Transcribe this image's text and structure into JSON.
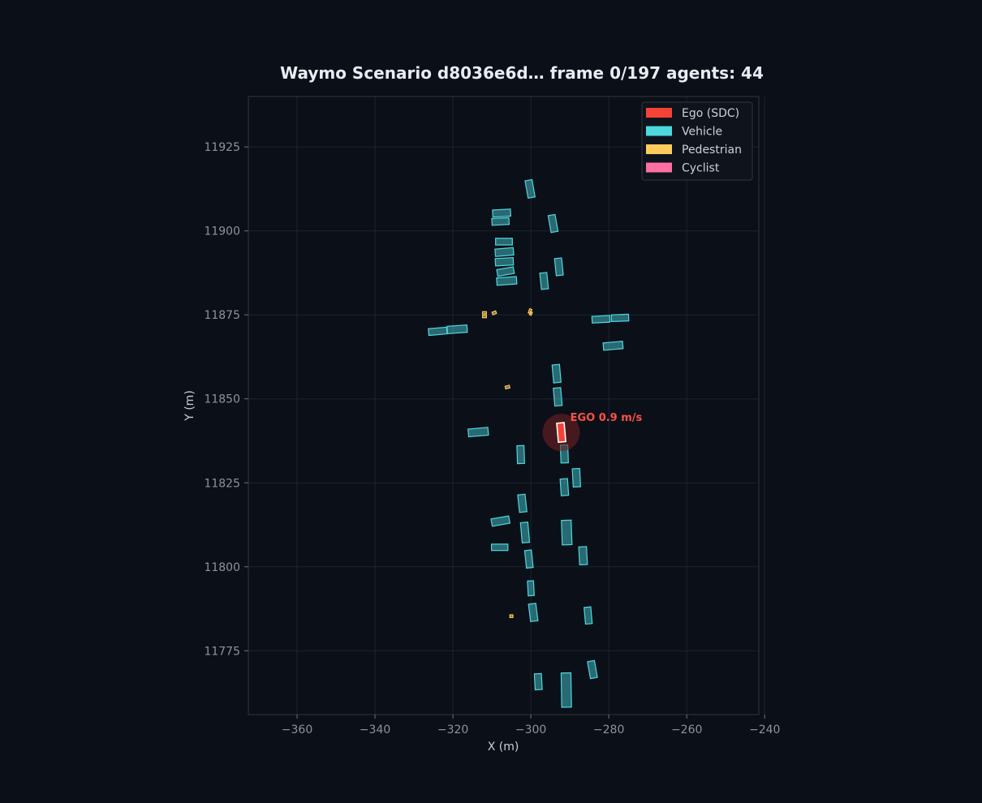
{
  "chart_data": {
    "type": "scatter",
    "title": "Waymo Scenario  d8036e6d…   frame 0/197   agents: 44",
    "xlabel": "X (m)",
    "ylabel": "Y (m)",
    "xlim": [
      -372.5,
      -241.5
    ],
    "ylim": [
      11756,
      11940
    ],
    "xticks": [
      -360,
      -340,
      -320,
      -300,
      -280,
      -260,
      -240
    ],
    "yticks": [
      11775,
      11800,
      11825,
      11850,
      11875,
      11900,
      11925
    ],
    "grid": true,
    "legend": {
      "placement": "top-right",
      "entries": [
        {
          "label": "Ego (SDC)",
          "color": "#f44336"
        },
        {
          "label": "Vehicle",
          "color": "#4dd8e0"
        },
        {
          "label": "Pedestrian",
          "color": "#ffcc5c"
        },
        {
          "label": "Cyclist",
          "color": "#ff6fa3"
        }
      ]
    },
    "ego": {
      "x": -292.2,
      "y": 11840,
      "length": 4.9,
      "width": 2.2,
      "heading_deg": 95,
      "label": "EGO  0.9 m/s"
    },
    "agents": [
      {
        "type": "vehicle",
        "x": -300.2,
        "y": 11912.5,
        "length": 4.5,
        "width": 2.1,
        "heading_deg": 100
      },
      {
        "type": "vehicle",
        "x": -307.5,
        "y": 11905.3,
        "length": 4.6,
        "width": 2.1,
        "heading_deg": 3
      },
      {
        "type": "vehicle",
        "x": -307.8,
        "y": 11902.8,
        "length": 4.4,
        "width": 2.0,
        "heading_deg": 3
      },
      {
        "type": "vehicle",
        "x": -294.3,
        "y": 11902.2,
        "length": 4.4,
        "width": 2.1,
        "heading_deg": 100
      },
      {
        "type": "vehicle",
        "x": -306.9,
        "y": 11896.8,
        "length": 4.3,
        "width": 2.0,
        "heading_deg": 0
      },
      {
        "type": "vehicle",
        "x": -306.8,
        "y": 11893.7,
        "length": 4.7,
        "width": 2.2,
        "heading_deg": 5
      },
      {
        "type": "vehicle",
        "x": -306.8,
        "y": 11890.8,
        "length": 4.6,
        "width": 2.2,
        "heading_deg": 3
      },
      {
        "type": "vehicle",
        "x": -306.5,
        "y": 11887.9,
        "length": 4.3,
        "width": 2.0,
        "heading_deg": 10
      },
      {
        "type": "vehicle",
        "x": -306.2,
        "y": 11885.1,
        "length": 5.1,
        "width": 2.2,
        "heading_deg": 4
      },
      {
        "type": "vehicle",
        "x": -292.8,
        "y": 11889.3,
        "length": 4.4,
        "width": 2.1,
        "heading_deg": 96
      },
      {
        "type": "vehicle",
        "x": -296.6,
        "y": 11885.1,
        "length": 4.2,
        "width": 2.1,
        "heading_deg": 96
      },
      {
        "type": "vehicle",
        "x": -282.0,
        "y": 11873.7,
        "length": 4.6,
        "width": 2.0,
        "heading_deg": 3
      },
      {
        "type": "vehicle",
        "x": -277.1,
        "y": 11874.1,
        "length": 4.4,
        "width": 2.0,
        "heading_deg": 2
      },
      {
        "type": "vehicle",
        "x": -323.9,
        "y": 11870.1,
        "length": 4.7,
        "width": 2.0,
        "heading_deg": 5
      },
      {
        "type": "vehicle",
        "x": -318.9,
        "y": 11870.7,
        "length": 5.1,
        "width": 2.2,
        "heading_deg": 4
      },
      {
        "type": "vehicle",
        "x": -278.9,
        "y": 11865.8,
        "length": 5.0,
        "width": 2.2,
        "heading_deg": 5
      },
      {
        "type": "vehicle",
        "x": -293.4,
        "y": 11857.5,
        "length": 4.6,
        "width": 2.2,
        "heading_deg": 95
      },
      {
        "type": "vehicle",
        "x": -293.1,
        "y": 11850.6,
        "length": 4.6,
        "width": 2.2,
        "heading_deg": 95
      },
      {
        "type": "vehicle",
        "x": -313.5,
        "y": 11840.1,
        "length": 5.1,
        "width": 2.3,
        "heading_deg": 5
      },
      {
        "type": "vehicle",
        "x": -302.6,
        "y": 11833.4,
        "length": 4.6,
        "width": 2.1,
        "heading_deg": 92
      },
      {
        "type": "vehicle",
        "x": -291.4,
        "y": 11833.6,
        "length": 4.6,
        "width": 2.2,
        "heading_deg": 92
      },
      {
        "type": "vehicle",
        "x": -288.3,
        "y": 11826.5,
        "length": 4.7,
        "width": 2.2,
        "heading_deg": 93
      },
      {
        "type": "vehicle",
        "x": -291.4,
        "y": 11823.7,
        "length": 4.3,
        "width": 2.2,
        "heading_deg": 94
      },
      {
        "type": "vehicle",
        "x": -302.2,
        "y": 11818.9,
        "length": 4.5,
        "width": 2.2,
        "heading_deg": 96
      },
      {
        "type": "vehicle",
        "x": -307.8,
        "y": 11813.6,
        "length": 4.6,
        "width": 2.2,
        "heading_deg": 10
      },
      {
        "type": "vehicle",
        "x": -301.5,
        "y": 11810.2,
        "length": 5.2,
        "width": 2.2,
        "heading_deg": 95
      },
      {
        "type": "vehicle",
        "x": -290.8,
        "y": 11810.2,
        "length": 6.3,
        "width": 2.9,
        "heading_deg": 92
      },
      {
        "type": "vehicle",
        "x": -308.0,
        "y": 11805.8,
        "length": 4.2,
        "width": 1.9,
        "heading_deg": 0
      },
      {
        "type": "vehicle",
        "x": -300.5,
        "y": 11802.3,
        "length": 4.5,
        "width": 2.0,
        "heading_deg": 96
      },
      {
        "type": "vehicle",
        "x": -286.6,
        "y": 11803.3,
        "length": 4.6,
        "width": 2.3,
        "heading_deg": 93
      },
      {
        "type": "vehicle",
        "x": -300.0,
        "y": 11793.6,
        "length": 3.8,
        "width": 1.8,
        "heading_deg": 93
      },
      {
        "type": "vehicle",
        "x": -299.4,
        "y": 11786.4,
        "length": 4.5,
        "width": 2.2,
        "heading_deg": 97
      },
      {
        "type": "vehicle",
        "x": -285.3,
        "y": 11785.5,
        "length": 4.3,
        "width": 2.0,
        "heading_deg": 95
      },
      {
        "type": "vehicle",
        "x": -284.2,
        "y": 11769.4,
        "length": 4.4,
        "width": 2.1,
        "heading_deg": 100
      },
      {
        "type": "vehicle",
        "x": -298.1,
        "y": 11765.8,
        "length": 4.1,
        "width": 2.1,
        "heading_deg": 93
      },
      {
        "type": "vehicle",
        "x": -290.9,
        "y": 11763.3,
        "length": 8.8,
        "width": 2.9,
        "heading_deg": 91
      },
      {
        "type": "pedestrian",
        "x": -311.9,
        "y": 11875.6,
        "length": 1.0,
        "width": 0.7,
        "heading_deg": 0
      },
      {
        "type": "pedestrian",
        "x": -311.9,
        "y": 11874.5,
        "length": 1.0,
        "width": 0.7,
        "heading_deg": 0
      },
      {
        "type": "pedestrian",
        "x": -309.4,
        "y": 11875.6,
        "length": 1.0,
        "width": 0.8,
        "heading_deg": 20
      },
      {
        "type": "pedestrian",
        "x": -300.2,
        "y": 11876.1,
        "length": 1.1,
        "width": 0.7,
        "heading_deg": 70
      },
      {
        "type": "pedestrian",
        "x": -300.0,
        "y": 11875.4,
        "length": 0.8,
        "width": 0.6,
        "heading_deg": 70
      },
      {
        "type": "pedestrian",
        "x": -306.0,
        "y": 11853.5,
        "length": 1.1,
        "width": 0.8,
        "heading_deg": 15
      },
      {
        "type": "pedestrian",
        "x": -305.0,
        "y": 11785.3,
        "length": 0.8,
        "width": 0.8,
        "heading_deg": 0
      }
    ]
  }
}
